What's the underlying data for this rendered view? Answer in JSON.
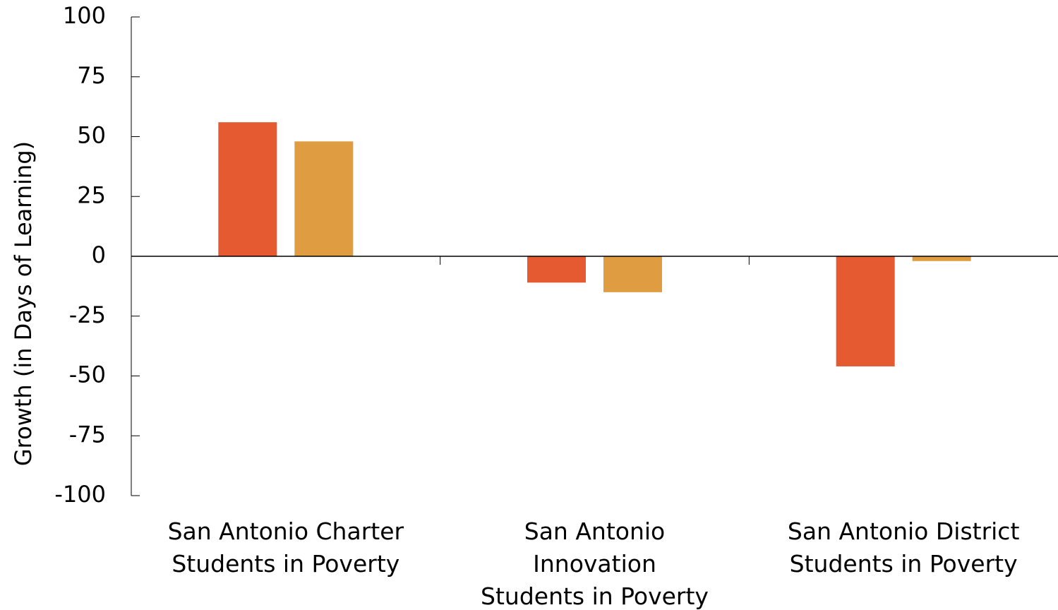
{
  "chart_data": {
    "type": "bar",
    "y_label": "Growth (in Days of Learning)",
    "categories": [
      "San Antonio Charter\nStudents in Poverty",
      "San Antonio\nInnovation\nStudents in Poverty",
      "San Antonio District\nStudents in Poverty"
    ],
    "series": [
      {
        "color": "#e55a30",
        "values": [
          56,
          -11,
          -46
        ]
      },
      {
        "color": "#e09c40",
        "values": [
          48,
          -15,
          -2
        ]
      }
    ],
    "ylim": [
      -100,
      100
    ],
    "yticks": [
      -100,
      -75,
      -50,
      -25,
      0,
      25,
      50,
      75,
      100
    ],
    "grid": false
  }
}
